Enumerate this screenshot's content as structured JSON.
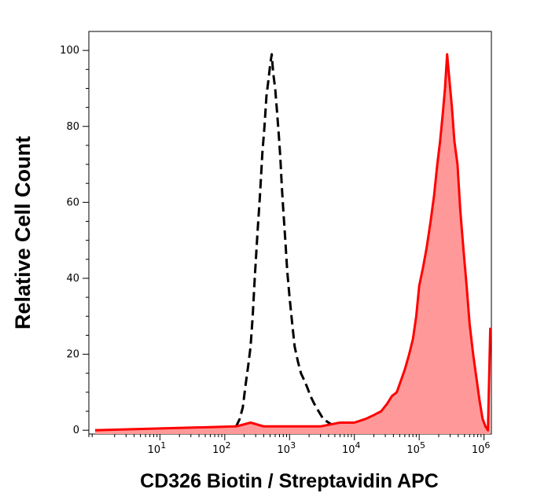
{
  "chart_data": {
    "type": "area",
    "xlabel": "CD326 Biotin / Streptavidin APC",
    "ylabel": "Relative Cell Count",
    "xscale": "log",
    "xlim": [
      0.8,
      1300000
    ],
    "ylim": [
      -1,
      105
    ],
    "x_ticks": [
      {
        "value": 10,
        "base": "10",
        "exp": "1"
      },
      {
        "value": 100,
        "base": "10",
        "exp": "2"
      },
      {
        "value": 1000,
        "base": "10",
        "exp": "3"
      },
      {
        "value": 10000,
        "base": "10",
        "exp": "4"
      },
      {
        "value": 100000,
        "base": "10",
        "exp": "5"
      },
      {
        "value": 1000000,
        "base": "10",
        "exp": "6"
      }
    ],
    "y_ticks": [
      {
        "value": 0,
        "label": "0"
      },
      {
        "value": 20,
        "label": "20"
      },
      {
        "value": 40,
        "label": "40"
      },
      {
        "value": 60,
        "label": "60"
      },
      {
        "value": 80,
        "label": "80"
      },
      {
        "value": 100,
        "label": "100"
      }
    ],
    "grid": false,
    "legend": "none",
    "series": [
      {
        "style": "black-dashed-line",
        "color": "#000000",
        "x": [
          1,
          120,
          150,
          170,
          190,
          210,
          230,
          250,
          270,
          290,
          320,
          350,
          380,
          410,
          440,
          470,
          500,
          530,
          560,
          600,
          640,
          680,
          720,
          760,
          800,
          860,
          920,
          1000,
          1100,
          1200,
          1350,
          1500,
          1700,
          1900,
          2100,
          2400,
          2800,
          3300,
          4000,
          5000,
          6500,
          9000,
          12000,
          20000
        ],
        "y": [
          0,
          0,
          1,
          3,
          6,
          12,
          17,
          22,
          30,
          40,
          52,
          62,
          73,
          80,
          88,
          92,
          96,
          99,
          94,
          90,
          84,
          78,
          72,
          64,
          58,
          50,
          42,
          35,
          28,
          22,
          18,
          15,
          13,
          11,
          9,
          7,
          5,
          3,
          2,
          1,
          2,
          1,
          0,
          0
        ]
      },
      {
        "style": "red-filled-area",
        "color": "#ff0000",
        "fill": "#ff9999",
        "x": [
          1,
          150,
          250,
          400,
          700,
          1500,
          3000,
          6000,
          10000,
          15000,
          20000,
          26000,
          32000,
          38000,
          45000,
          52000,
          60000,
          70000,
          80000,
          90000,
          100000,
          115000,
          130000,
          150000,
          170000,
          190000,
          210000,
          230000,
          250000,
          270000,
          290000,
          320000,
          350000,
          390000,
          430000,
          480000,
          540000,
          600000,
          680000,
          760000,
          850000,
          950000,
          1050000,
          1150000,
          1250000
        ],
        "y": [
          0,
          1,
          2,
          1,
          1,
          1,
          1,
          2,
          2,
          3,
          4,
          5,
          7,
          9,
          10,
          13,
          16,
          20,
          24,
          30,
          38,
          43,
          48,
          55,
          62,
          70,
          76,
          83,
          90,
          99,
          93,
          85,
          76,
          70,
          58,
          48,
          38,
          28,
          20,
          14,
          8,
          3,
          1,
          0,
          27
        ]
      }
    ]
  }
}
